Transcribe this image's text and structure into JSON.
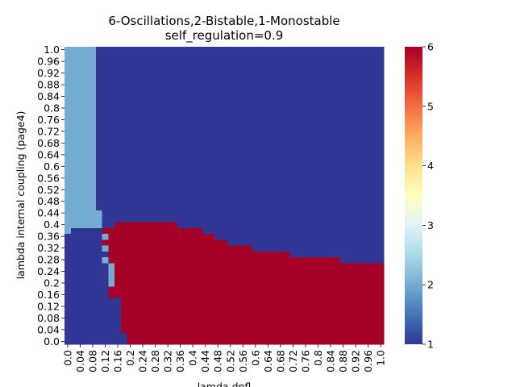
{
  "chart_data": {
    "type": "heatmap",
    "title": "6-Oscillations,2-Bistable,1-Monostable",
    "subtitle": "self_regulation=0.9",
    "xlabel": "lamda dnfl",
    "ylabel": "lambda internal coupling (page4)",
    "x_tick_labels": [
      "0.0",
      "0.04",
      "0.08",
      "0.12",
      "0.16",
      "0.2",
      "0.24",
      "0.28",
      "0.32",
      "0.36",
      "0.4",
      "0.44",
      "0.48",
      "0.52",
      "0.56",
      "0.6",
      "0.64",
      "0.68",
      "0.72",
      "0.76",
      "0.8",
      "0.84",
      "0.88",
      "0.92",
      "0.96",
      "1.0"
    ],
    "y_tick_labels": [
      "1.0",
      "0.96",
      "0.92",
      "0.88",
      "0.84",
      "0.8",
      "0.76",
      "0.72",
      "0.68",
      "0.64",
      "0.6",
      "0.56",
      "0.52",
      "0.48",
      "0.44",
      "0.4",
      "0.36",
      "0.32",
      "0.28",
      "0.24",
      "0.2",
      "0.16",
      "0.12",
      "0.08",
      "0.04",
      "0.0"
    ],
    "colorbar": {
      "min": 1,
      "max": 6,
      "ticks": [
        "1",
        "2",
        "3",
        "4",
        "5",
        "6"
      ],
      "colormap": "RdYlBu_r"
    },
    "grid": "51x51",
    "value_legend": {
      "oscillations": 6,
      "bistable": 2,
      "monostable": 1
    },
    "regions": [
      {
        "value": 2,
        "description": "bistable strip at low lamda dnfl",
        "x_range": [
          0.0,
          0.095
        ],
        "y_range": [
          0.41,
          1.0
        ]
      },
      {
        "value": 2,
        "description": "bistable extension",
        "x_range": [
          0.0,
          0.115
        ],
        "y_range": [
          0.39,
          0.44
        ]
      },
      {
        "value": 6,
        "description": "oscillations",
        "boundary_x": [
          0.12,
          0.14,
          0.16,
          0.18,
          0.2,
          0.24,
          0.28,
          0.32,
          0.36,
          0.4,
          0.44,
          0.48,
          0.52,
          0.56,
          0.6,
          0.64,
          0.68,
          0.72,
          0.76,
          0.8,
          0.84,
          0.88,
          0.92,
          0.96,
          1.0
        ],
        "boundary_y_top": [
          0.39,
          0.39,
          0.41,
          0.41,
          0.41,
          0.41,
          0.41,
          0.41,
          0.39,
          0.38,
          0.37,
          0.35,
          0.33,
          0.33,
          0.31,
          0.31,
          0.31,
          0.29,
          0.29,
          0.29,
          0.29,
          0.27,
          0.27,
          0.27,
          0.27
        ]
      },
      {
        "value": 1,
        "description": "monostable elsewhere"
      }
    ]
  }
}
